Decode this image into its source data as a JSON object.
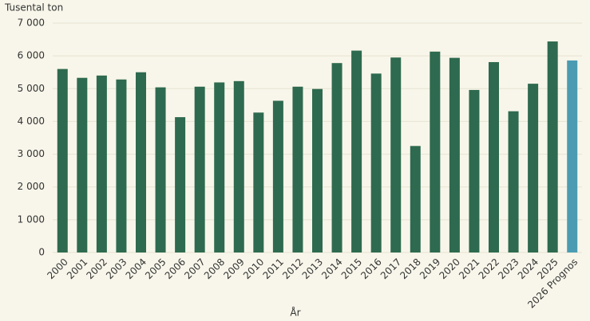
{
  "chart_data": {
    "type": "bar",
    "y_label": "Tusental ton",
    "x_label": "År",
    "categories": [
      "2000",
      "2001",
      "2002",
      "2003",
      "2004",
      "2005",
      "2006",
      "2007",
      "2008",
      "2009",
      "2010",
      "2011",
      "2012",
      "2013",
      "2014",
      "2015",
      "2016",
      "2017",
      "2018",
      "2019",
      "2020",
      "2021",
      "2022",
      "2023",
      "2024",
      "2025",
      "2026 Prognos"
    ],
    "values": [
      5600,
      5330,
      5400,
      5280,
      5500,
      5040,
      4130,
      5060,
      5190,
      5230,
      4270,
      4630,
      5060,
      4990,
      5780,
      6160,
      5460,
      5950,
      3250,
      6130,
      5940,
      4960,
      5810,
      4310,
      5150,
      6440,
      5860
    ],
    "colors": [
      "#2e6a4f",
      "#2e6a4f",
      "#2e6a4f",
      "#2e6a4f",
      "#2e6a4f",
      "#2e6a4f",
      "#2e6a4f",
      "#2e6a4f",
      "#2e6a4f",
      "#2e6a4f",
      "#2e6a4f",
      "#2e6a4f",
      "#2e6a4f",
      "#2e6a4f",
      "#2e6a4f",
      "#2e6a4f",
      "#2e6a4f",
      "#2e6a4f",
      "#2e6a4f",
      "#2e6a4f",
      "#2e6a4f",
      "#2e6a4f",
      "#2e6a4f",
      "#2e6a4f",
      "#2e6a4f",
      "#2e6a4f",
      "#4b9cb3"
    ],
    "ylim": [
      0,
      7000
    ],
    "yticks": [
      0,
      {
        "value": 1000,
        "label": "1 000"
      },
      {
        "value": 2000,
        "label": "2 000"
      },
      {
        "value": 3000,
        "label": "3 000"
      },
      {
        "value": 4000,
        "label": "4 000"
      },
      {
        "value": 5000,
        "label": "5 000"
      },
      {
        "value": 6000,
        "label": "6 000"
      },
      {
        "value": 7000,
        "label": "7 000"
      }
    ],
    "grid": true
  }
}
